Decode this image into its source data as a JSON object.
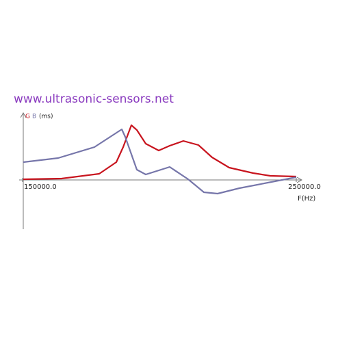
{
  "chart_data": {
    "type": "line",
    "annotation": "www.ultrasonic-sensors.net",
    "y_label": "(ms)",
    "x_label": "F(Hz)",
    "xlim": [
      150000,
      250000
    ],
    "ylim": [
      -72,
      98
    ],
    "xticks": [
      {
        "value": 150000,
        "label": "150000.0"
      },
      {
        "value": 250000,
        "label": "250000.0"
      }
    ],
    "series": [
      {
        "name": "G",
        "color": "#c8141e",
        "x": [
          150250,
          164250,
          178000,
          184250,
          186750,
          189750,
          191750,
          195000,
          199750,
          203750,
          208750,
          214250,
          219250,
          225500,
          234250,
          240500,
          250000
        ],
        "values": [
          1,
          2,
          9,
          26,
          48,
          80,
          73,
          53,
          43,
          50,
          57,
          51,
          33,
          18,
          10,
          6,
          5
        ]
      },
      {
        "name": "B",
        "color": "#7676aa",
        "x": [
          150250,
          163000,
          176250,
          186250,
          187500,
          191750,
          195000,
          203750,
          210500,
          216250,
          221250,
          229250,
          250000
        ],
        "values": [
          26,
          32,
          48,
          74,
          63,
          15,
          8,
          19,
          1,
          -18,
          -20,
          -12,
          4
        ]
      }
    ]
  }
}
